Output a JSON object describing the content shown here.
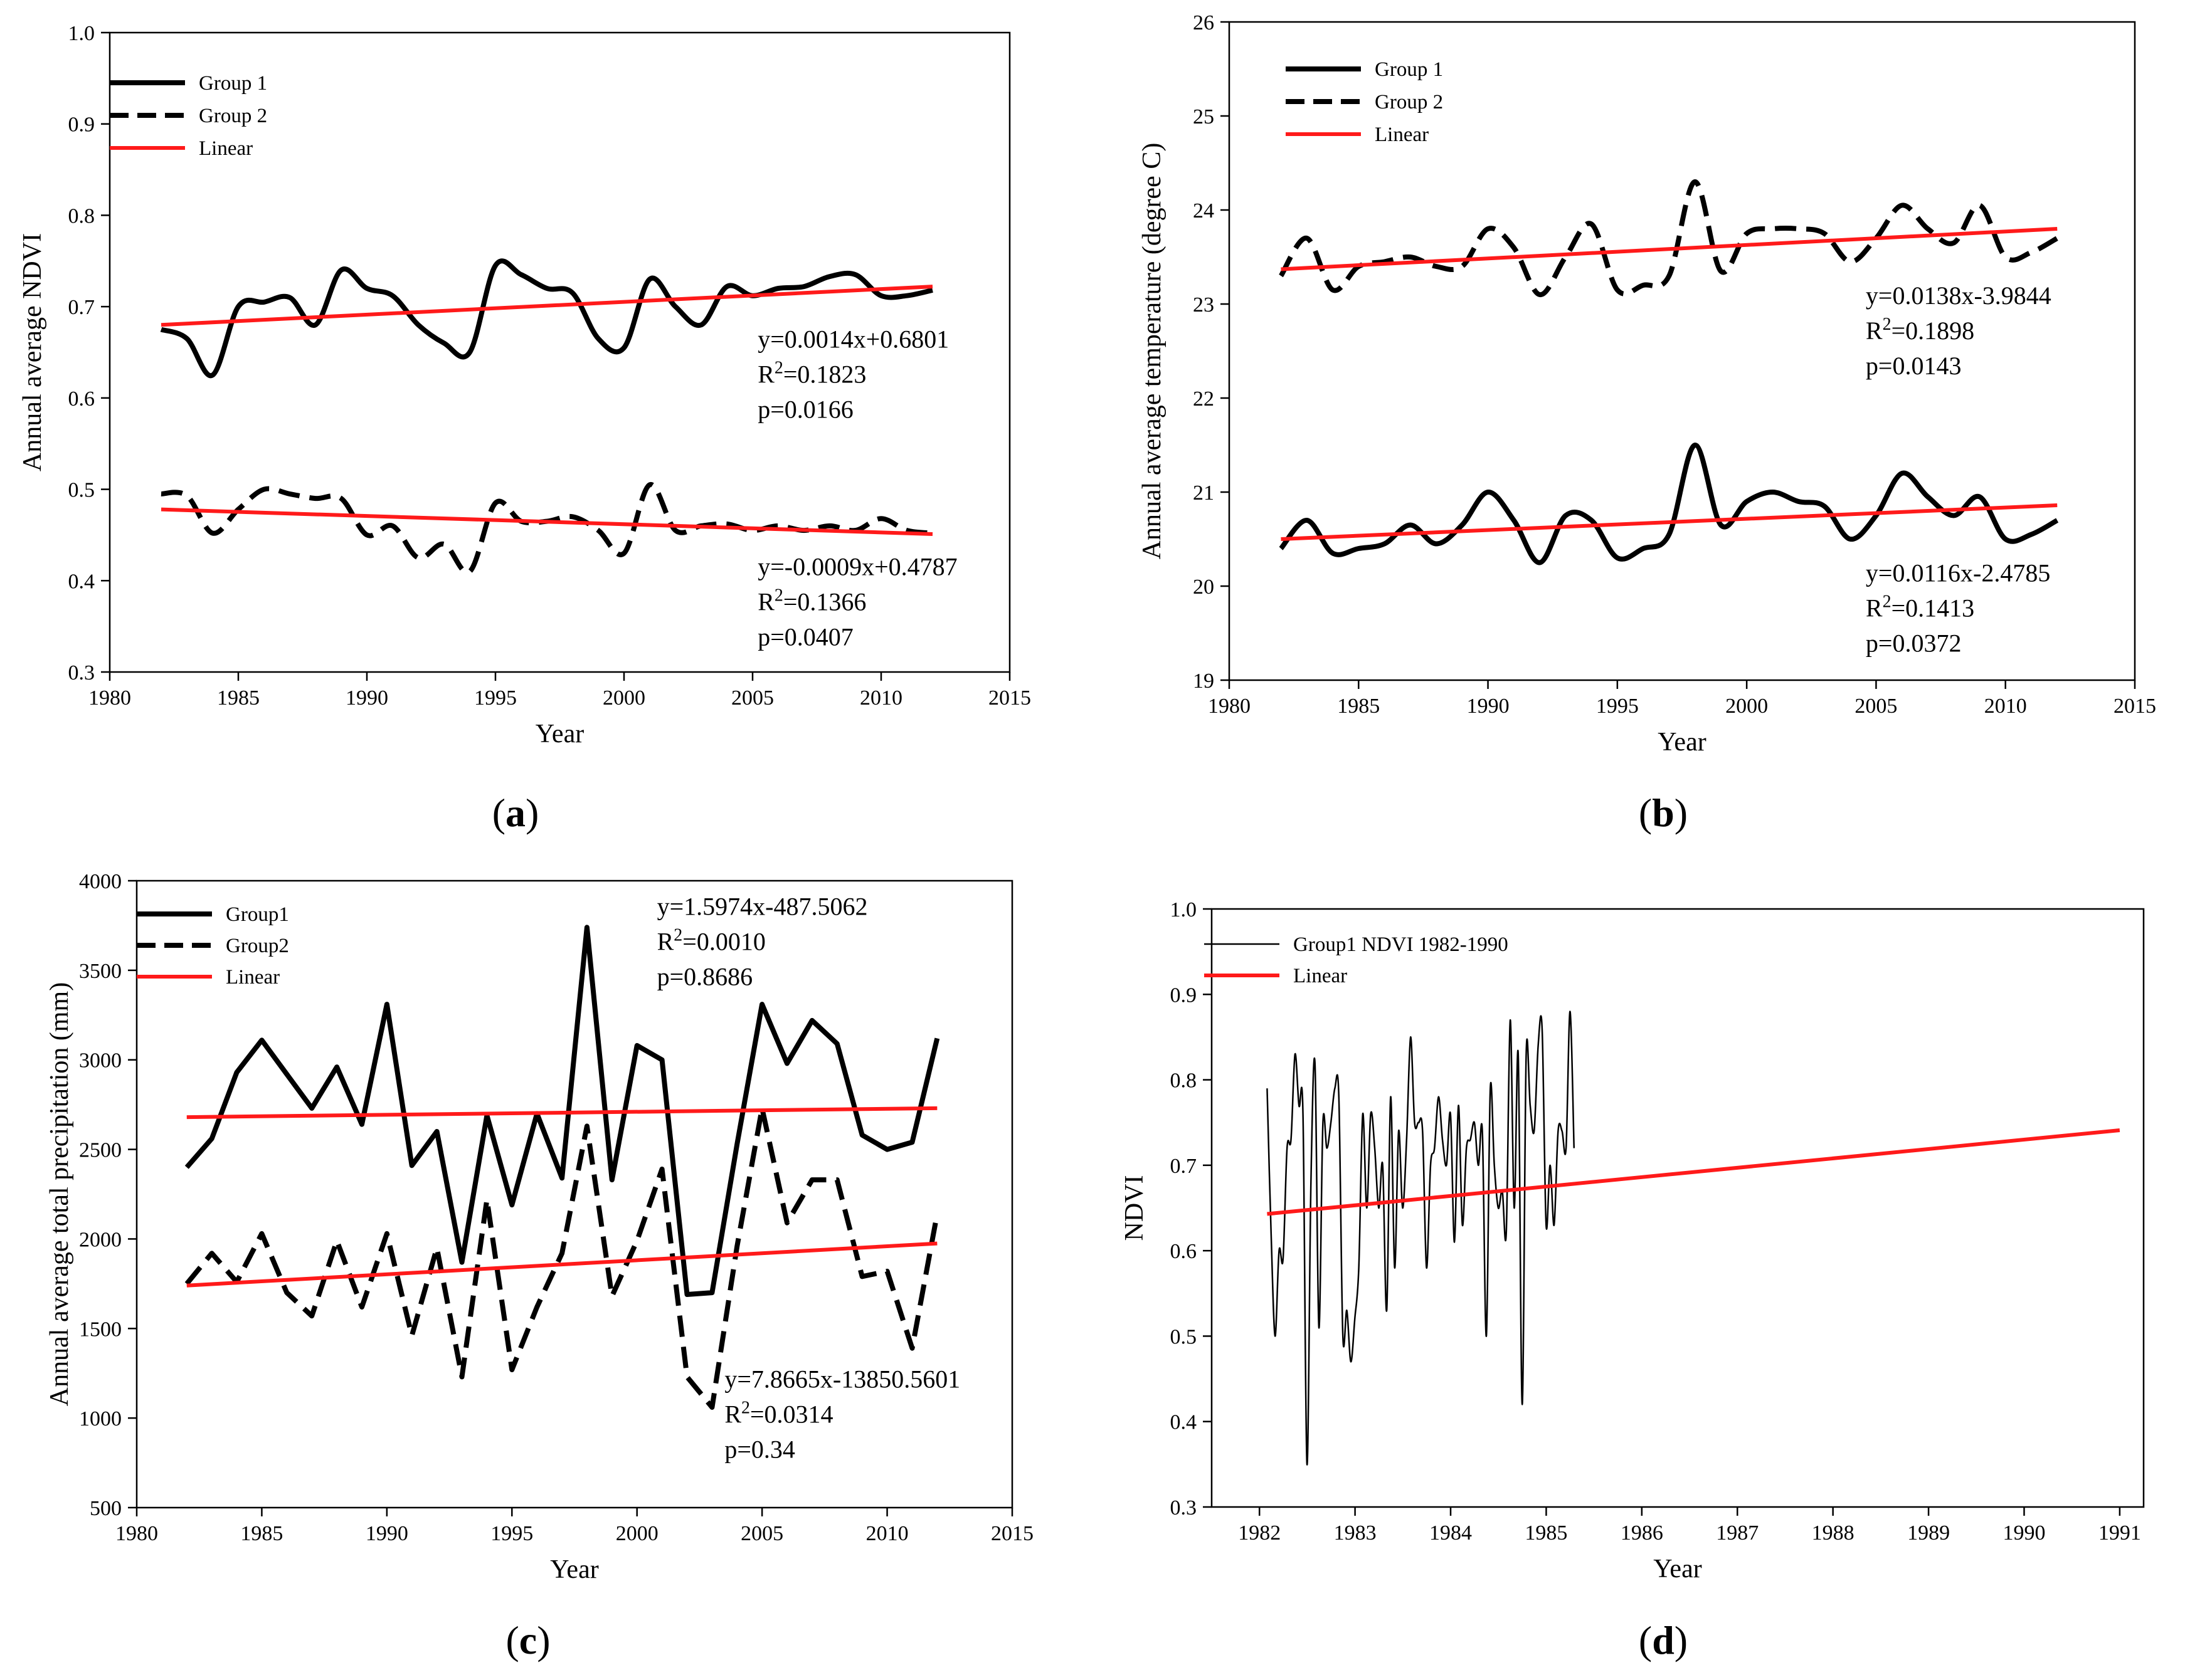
{
  "captions": [
    "(a)",
    "(b)",
    "(c)",
    "(d)"
  ],
  "colors": {
    "linear": "#ff1a1a",
    "series": "#000000"
  },
  "chart_data": [
    {
      "id": "a",
      "type": "line",
      "xlabel": "Year",
      "ylabel": "Annual average NDVI",
      "xlim": [
        1980,
        2015
      ],
      "ylim": [
        0.3,
        1.0
      ],
      "xticks": [
        1980,
        1985,
        1990,
        1995,
        2000,
        2005,
        2010,
        2015
      ],
      "yticks": [
        0.3,
        0.4,
        0.5,
        0.6,
        0.7,
        0.8,
        0.9,
        1.0
      ],
      "ytick_decimals": 1,
      "legend": [
        "Group 1",
        "Group 2",
        "Linear"
      ],
      "x": [
        1982,
        1983,
        1984,
        1985,
        1986,
        1987,
        1988,
        1989,
        1990,
        1991,
        1992,
        1993,
        1994,
        1995,
        1996,
        1997,
        1998,
        1999,
        2000,
        2001,
        2002,
        2003,
        2004,
        2005,
        2006,
        2007,
        2008,
        2009,
        2010,
        2011,
        2012
      ],
      "series": [
        {
          "name": "Group 1",
          "style": "solid",
          "values": [
            0.675,
            0.665,
            0.625,
            0.7,
            0.705,
            0.71,
            0.68,
            0.74,
            0.72,
            0.712,
            0.68,
            0.66,
            0.65,
            0.745,
            0.735,
            0.72,
            0.715,
            0.665,
            0.655,
            0.73,
            0.7,
            0.68,
            0.722,
            0.712,
            0.72,
            0.722,
            0.733,
            0.735,
            0.712,
            0.712,
            0.718
          ]
        },
        {
          "name": "Group 2",
          "style": "dash",
          "values": [
            0.495,
            0.493,
            0.452,
            0.478,
            0.5,
            0.495,
            0.49,
            0.49,
            0.45,
            0.46,
            0.425,
            0.44,
            0.41,
            0.485,
            0.465,
            0.465,
            0.47,
            0.455,
            0.43,
            0.505,
            0.455,
            0.46,
            0.462,
            0.455,
            0.46,
            0.455,
            0.46,
            0.455,
            0.468,
            0.455,
            0.452
          ]
        }
      ],
      "linear": [
        {
          "x": [
            1982,
            2012
          ],
          "y": [
            0.68,
            0.722
          ]
        },
        {
          "x": [
            1982,
            2012
          ],
          "y": [
            0.478,
            0.451
          ]
        }
      ],
      "annotations": [
        {
          "lines": [
            "y=0.0014x+0.6801",
            "R2=0.1823",
            "p=0.0166"
          ],
          "x": 2005.2,
          "y": 0.655
        },
        {
          "lines": [
            "y=-0.0009x+0.4787",
            "R2=0.1366",
            "p=0.0407"
          ],
          "x": 2005.2,
          "y": 0.406
        }
      ]
    },
    {
      "id": "b",
      "type": "line",
      "xlabel": "Year",
      "ylabel": "Annual average temperature (degree C)",
      "xlim": [
        1980,
        2015
      ],
      "ylim": [
        19,
        26
      ],
      "xticks": [
        1980,
        1985,
        1990,
        1995,
        2000,
        2005,
        2010,
        2015
      ],
      "yticks": [
        19,
        20,
        21,
        22,
        23,
        24,
        25,
        26
      ],
      "ytick_decimals": 0,
      "legend": [
        "Group 1",
        "Group 2",
        "Linear"
      ],
      "x": [
        1982,
        1983,
        1984,
        1985,
        1986,
        1987,
        1988,
        1989,
        1990,
        1991,
        1992,
        1993,
        1994,
        1995,
        1996,
        1997,
        1998,
        1999,
        2000,
        2001,
        2002,
        2003,
        2004,
        2005,
        2006,
        2007,
        2008,
        2009,
        2010,
        2011,
        2012
      ],
      "series": [
        {
          "name": "Group 1",
          "style": "solid",
          "values": [
            20.4,
            20.7,
            20.35,
            20.4,
            20.45,
            20.65,
            20.45,
            20.65,
            21.0,
            20.7,
            20.25,
            20.75,
            20.7,
            20.3,
            20.4,
            20.55,
            21.5,
            20.65,
            20.9,
            21.0,
            20.9,
            20.85,
            20.5,
            20.75,
            21.2,
            20.95,
            20.75,
            20.95,
            20.5,
            20.55,
            20.7
          ]
        },
        {
          "name": "Group 2",
          "style": "dash",
          "values": [
            23.3,
            23.7,
            23.15,
            23.4,
            23.45,
            23.5,
            23.4,
            23.4,
            23.8,
            23.6,
            23.1,
            23.5,
            23.85,
            23.15,
            23.2,
            23.3,
            24.3,
            23.35,
            23.75,
            23.8,
            23.8,
            23.75,
            23.45,
            23.7,
            24.05,
            23.8,
            23.65,
            24.05,
            23.5,
            23.55,
            23.7
          ]
        }
      ],
      "linear": [
        {
          "x": [
            1982,
            2012
          ],
          "y": [
            23.37,
            23.8
          ]
        },
        {
          "x": [
            1982,
            2012
          ],
          "y": [
            20.5,
            20.86
          ]
        }
      ],
      "annotations": [
        {
          "lines": [
            "y=0.0138x-3.9844",
            "R2=0.1898",
            "p=0.0143"
          ],
          "x": 2004.6,
          "y": 23.0
        },
        {
          "lines": [
            "y=0.0116x-2.4785",
            "R2=0.1413",
            "p=0.0372"
          ],
          "x": 2004.6,
          "y": 20.05
        }
      ]
    },
    {
      "id": "c",
      "type": "line",
      "xlabel": "Year",
      "ylabel": "Annual average total precipitation (mm)",
      "xlim": [
        1980,
        2015
      ],
      "ylim": [
        500,
        4000
      ],
      "xticks": [
        1980,
        1985,
        1990,
        1995,
        2000,
        2005,
        2010,
        2015
      ],
      "yticks": [
        500,
        1000,
        1500,
        2000,
        2500,
        3000,
        3500,
        4000
      ],
      "ytick_decimals": 0,
      "legend": [
        "Group1",
        "Group2",
        "Linear"
      ],
      "x": [
        1982,
        1983,
        1984,
        1985,
        1986,
        1987,
        1988,
        1989,
        1990,
        1991,
        1992,
        1993,
        1994,
        1995,
        1996,
        1997,
        1998,
        1999,
        2000,
        2001,
        2002,
        2003,
        2004,
        2005,
        2006,
        2007,
        2008,
        2009,
        2010,
        2011,
        2012
      ],
      "series": [
        {
          "name": "Group1",
          "style": "solid",
          "values": [
            2400,
            2560,
            2930,
            3110,
            2920,
            2730,
            2960,
            2640,
            3310,
            2410,
            2600,
            1870,
            2690,
            2190,
            2700,
            2340,
            3740,
            2330,
            3080,
            3000,
            1690,
            1700,
            2530,
            3310,
            2980,
            3220,
            3090,
            2580,
            2500,
            2540,
            3120
          ]
        },
        {
          "name": "Group2",
          "style": "dash",
          "values": [
            1750,
            1920,
            1760,
            2030,
            1700,
            1570,
            1990,
            1620,
            2030,
            1460,
            1950,
            1230,
            2220,
            1270,
            1620,
            1920,
            2630,
            1680,
            1990,
            2390,
            1230,
            1060,
            1960,
            2730,
            2090,
            2330,
            2330,
            1790,
            1820,
            1390,
            2140
          ]
        }
      ],
      "linear": [
        {
          "x": [
            1982,
            2012
          ],
          "y": [
            2680,
            2730
          ]
        },
        {
          "x": [
            1982,
            2012
          ],
          "y": [
            1740,
            1975
          ]
        }
      ],
      "annotations": [
        {
          "lines": [
            "y=1.5974x-487.5062",
            "R2=0.0010",
            "p=0.8686"
          ],
          "x": 2000.8,
          "y": 3810
        },
        {
          "lines": [
            "y=7.8665x-13850.5601",
            "R2=0.0314",
            "p=0.34"
          ],
          "x": 2003.5,
          "y": 1170
        }
      ]
    },
    {
      "id": "d",
      "type": "line",
      "xlabel": "Year",
      "ylabel": "NDVI",
      "xlim": [
        1981.5,
        1991.25
      ],
      "ylim": [
        0.3,
        1.0
      ],
      "xticks": [
        1982,
        1983,
        1984,
        1985,
        1986,
        1987,
        1988,
        1989,
        1990,
        1991
      ],
      "yticks": [
        0.3,
        0.4,
        0.5,
        0.6,
        0.7,
        0.8,
        0.9,
        1.0
      ],
      "ytick_decimals": 1,
      "legend": [
        "Group1 NDVI 1982-1990",
        "Linear"
      ],
      "x_start": 1982.08,
      "x_step": 0.0417,
      "series": [
        {
          "name": "Group1 NDVI 1982-1990",
          "style": "thin",
          "values": [
            0.79,
            0.62,
            0.5,
            0.6,
            0.59,
            0.72,
            0.73,
            0.83,
            0.77,
            0.76,
            0.35,
            0.68,
            0.82,
            0.51,
            0.75,
            0.72,
            0.75,
            0.79,
            0.78,
            0.5,
            0.53,
            0.47,
            0.52,
            0.58,
            0.76,
            0.65,
            0.76,
            0.72,
            0.65,
            0.7,
            0.53,
            0.78,
            0.58,
            0.74,
            0.65,
            0.73,
            0.85,
            0.75,
            0.75,
            0.74,
            0.58,
            0.7,
            0.72,
            0.78,
            0.73,
            0.7,
            0.76,
            0.61,
            0.77,
            0.63,
            0.72,
            0.73,
            0.75,
            0.7,
            0.74,
            0.5,
            0.79,
            0.7,
            0.65,
            0.67,
            0.62,
            0.87,
            0.65,
            0.83,
            0.42,
            0.83,
            0.77,
            0.74,
            0.84,
            0.86,
            0.63,
            0.7,
            0.63,
            0.74,
            0.74,
            0.72,
            0.88,
            0.72
          ]
        }
      ],
      "linear": [
        {
          "x": [
            1982.08,
            1991.0
          ],
          "y": [
            0.643,
            0.741
          ]
        }
      ],
      "annotations": []
    }
  ]
}
